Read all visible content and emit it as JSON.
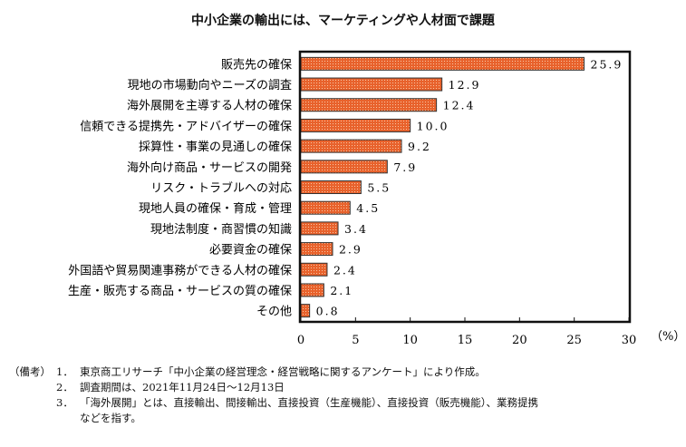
{
  "chart_data": {
    "type": "bar",
    "orientation": "horizontal",
    "title": "中小企業の輸出には、マーケティングや人材面で課題",
    "categories": [
      "販売先の確保",
      "現地の市場動向やニーズの調査",
      "海外展開を主導する人材の確保",
      "信頼できる提携先・アドバイザーの確保",
      "採算性・事業の見通しの確保",
      "海外向け商品・サービスの開発",
      "リスク・トラブルへの対応",
      "現地人員の確保・育成・管理",
      "現地法制度・商習慣の知識",
      "必要資金の確保",
      "外国語や貿易関連事務ができる人材の確保",
      "生産・販売する商品・サービスの質の確保",
      "その他"
    ],
    "values": [
      25.9,
      12.9,
      12.4,
      10.0,
      9.2,
      7.9,
      5.5,
      4.5,
      3.4,
      2.9,
      2.4,
      2.1,
      0.8
    ],
    "value_labels": [
      "25.9",
      "12.9",
      "12.4",
      "10.0",
      "9.2",
      "7.9",
      "5.5",
      "4.5",
      "3.4",
      "2.9",
      "2.4",
      "2.1",
      "0.8"
    ],
    "xlabel": "",
    "unit_label": "（%）",
    "ylabel": "",
    "xlim": [
      0,
      30
    ],
    "xticks": [
      0,
      5,
      10,
      15,
      20,
      25,
      30
    ],
    "grid": false,
    "legend": "none",
    "bar_color": "#e8622c",
    "bar_dot_color": "#f7c4a4"
  },
  "notes": {
    "prefix": "（備考）",
    "items": [
      {
        "num": "1．",
        "text": "東京商工リサーチ「中小企業の経営理念・経営戦略に関するアンケート」により作成。"
      },
      {
        "num": "2．",
        "text": "調査期間は、2021年11月24日～12月13日"
      },
      {
        "num": "3．",
        "text": "「海外展開」とは、直接輸出、間接輸出、直接投資（生産機能）、直接投資（販売機能）、業務提携"
      }
    ],
    "continuation": "などを指す。"
  }
}
